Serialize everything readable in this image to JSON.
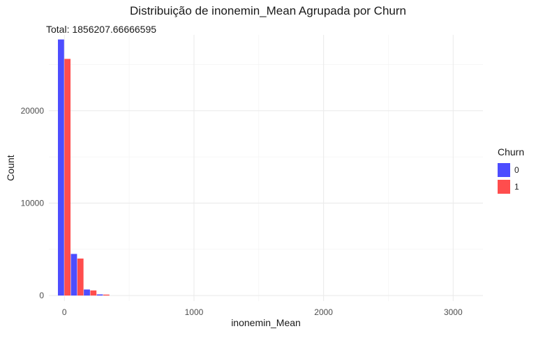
{
  "chart_data": {
    "type": "bar",
    "title": "Distribuição de inonemin_Mean Agrupada por Churn",
    "subtitle": "Total: 1856207.66666595",
    "xlabel": "inonemin_Mean",
    "ylabel": "Count",
    "xlim": [
      -120,
      3230
    ],
    "ylim": [
      -600,
      28200
    ],
    "x_ticks": [
      0,
      1000,
      2000,
      3000
    ],
    "x_tick_labels": [
      "0",
      "1000",
      "2000",
      "3000"
    ],
    "y_ticks": [
      0,
      10000,
      20000
    ],
    "y_tick_labels": [
      "0",
      "10000",
      "20000"
    ],
    "bin_width": 100,
    "bin_centers": [
      0,
      100,
      200,
      300
    ],
    "grid": true,
    "legend_title": "Churn",
    "legend_position": "right",
    "series": [
      {
        "name": "0",
        "color": "#4d4dff",
        "values": [
          27700,
          4500,
          650,
          120
        ]
      },
      {
        "name": "1",
        "color": "#ff4d4d",
        "values": [
          25600,
          4000,
          550,
          100
        ]
      }
    ]
  }
}
